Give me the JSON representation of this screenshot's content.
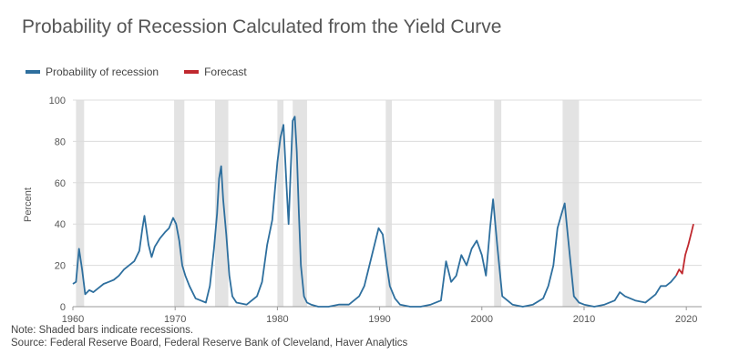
{
  "chart_data": {
    "type": "line",
    "title": "Probability of Recession Calculated from the Yield Curve",
    "ylabel": "Percent",
    "xlabel": "",
    "xlim": [
      1960,
      2021.5
    ],
    "ylim": [
      0,
      100
    ],
    "yticks": [
      0,
      20,
      40,
      60,
      80,
      100
    ],
    "xticks": [
      1960,
      1970,
      1980,
      1990,
      2000,
      2010,
      2020
    ],
    "grid": true,
    "legend_position": "top-left",
    "legend": [
      {
        "label": "Probability of recession",
        "color": "#2e6f9e"
      },
      {
        "label": "Forecast",
        "color": "#c0292f"
      }
    ],
    "recessions": [
      [
        1960.3,
        1961.1
      ],
      [
        1969.9,
        1970.9
      ],
      [
        1973.9,
        1975.2
      ],
      [
        1980.0,
        1980.6
      ],
      [
        1981.5,
        1982.9
      ],
      [
        1990.6,
        1991.2
      ],
      [
        2001.2,
        2001.9
      ],
      [
        2007.9,
        2009.5
      ]
    ],
    "series": [
      {
        "name": "Probability of recession",
        "color": "#2e6f9e",
        "x": [
          1960.0,
          1960.3,
          1960.6,
          1960.9,
          1961.2,
          1961.6,
          1962.0,
          1962.5,
          1963.0,
          1963.5,
          1964.0,
          1964.5,
          1965.0,
          1965.5,
          1966.0,
          1966.5,
          1966.8,
          1967.0,
          1967.4,
          1967.7,
          1968.0,
          1968.5,
          1969.0,
          1969.4,
          1969.8,
          1970.1,
          1970.4,
          1970.7,
          1971.0,
          1971.4,
          1972.0,
          1972.5,
          1973.0,
          1973.4,
          1973.8,
          1974.1,
          1974.3,
          1974.5,
          1974.7,
          1975.0,
          1975.3,
          1975.6,
          1976.0,
          1977.0,
          1978.0,
          1978.5,
          1979.0,
          1979.5,
          1980.0,
          1980.3,
          1980.6,
          1980.9,
          1981.1,
          1981.3,
          1981.5,
          1981.7,
          1981.9,
          1982.1,
          1982.3,
          1982.6,
          1982.9,
          1983.3,
          1984.0,
          1985.0,
          1986.0,
          1987.0,
          1988.0,
          1988.5,
          1989.0,
          1989.5,
          1989.9,
          1990.3,
          1990.7,
          1991.0,
          1991.5,
          1992.0,
          1993.0,
          1994.0,
          1995.0,
          1996.0,
          1996.5,
          1997.0,
          1997.5,
          1998.0,
          1998.5,
          1999.0,
          1999.5,
          2000.0,
          2000.4,
          2000.8,
          2001.1,
          2001.5,
          2002.0,
          2003.0,
          2004.0,
          2005.0,
          2006.0,
          2006.5,
          2007.0,
          2007.4,
          2007.8,
          2008.1,
          2008.4,
          2008.7,
          2009.0,
          2009.5,
          2010.0,
          2011.0,
          2012.0,
          2013.0,
          2013.5,
          2014.0,
          2015.0,
          2016.0,
          2017.0,
          2017.5,
          2018.0,
          2018.5,
          2019.0
        ],
        "values": [
          11,
          12,
          28,
          18,
          6,
          8,
          7,
          9,
          11,
          12,
          13,
          15,
          18,
          20,
          22,
          27,
          38,
          44,
          30,
          24,
          29,
          33,
          36,
          38,
          43,
          40,
          32,
          20,
          15,
          10,
          4,
          3,
          2,
          10,
          28,
          45,
          62,
          68,
          52,
          35,
          15,
          5,
          2,
          1,
          5,
          12,
          30,
          42,
          70,
          82,
          88,
          58,
          40,
          66,
          90,
          92,
          75,
          45,
          20,
          5,
          2,
          1,
          0,
          0,
          1,
          1,
          5,
          10,
          20,
          30,
          38,
          35,
          20,
          10,
          4,
          1,
          0,
          0,
          1,
          3,
          22,
          12,
          15,
          25,
          20,
          28,
          32,
          25,
          15,
          38,
          52,
          30,
          5,
          1,
          0,
          1,
          4,
          10,
          20,
          38,
          45,
          50,
          35,
          20,
          5,
          2,
          1,
          0,
          1,
          3,
          7,
          5,
          3,
          2,
          6,
          10,
          10,
          12,
          15
        ]
      },
      {
        "name": "Forecast",
        "color": "#c0292f",
        "x": [
          2019.0,
          2019.3,
          2019.6,
          2019.9,
          2020.2,
          2020.5,
          2020.7
        ],
        "values": [
          15,
          18,
          16,
          25,
          30,
          36,
          40
        ]
      }
    ]
  }
}
